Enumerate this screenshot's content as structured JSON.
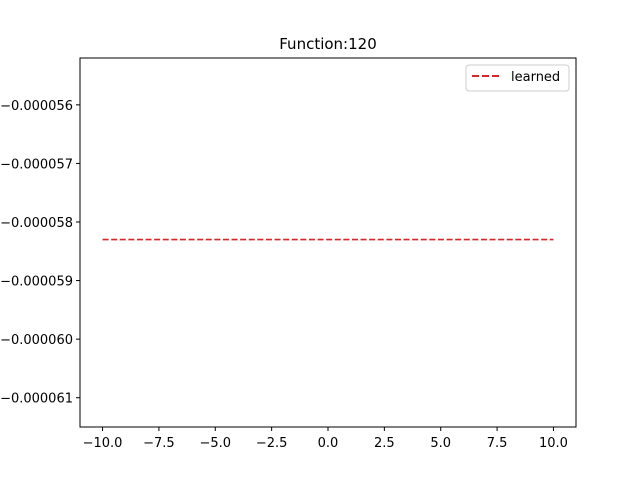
{
  "chart_data": {
    "type": "line",
    "title": "Function:120",
    "xlabel": "",
    "ylabel": "",
    "xlim": [
      -11.0,
      11.0
    ],
    "ylim": [
      -6.15e-05,
      -5.52e-05
    ],
    "grid": false,
    "legend_placement": "top-right",
    "x_ticks": [
      -10.0,
      -7.5,
      -5.0,
      -2.5,
      0.0,
      2.5,
      5.0,
      7.5,
      10.0
    ],
    "x_tick_labels": [
      "−10.0",
      "−7.5",
      "−5.0",
      "−2.5",
      "0.0",
      "2.5",
      "5.0",
      "7.5",
      "10.0"
    ],
    "y_ticks": [
      -5.6e-05,
      -5.7e-05,
      -5.8e-05,
      -5.9e-05,
      -6e-05,
      -6.1e-05
    ],
    "y_tick_labels": [
      "−0.000056",
      "−0.000057",
      "−0.000058",
      "−0.000059",
      "−0.000060",
      "−0.000061"
    ],
    "series": [
      {
        "name": "learned",
        "color": "#d62728",
        "style": "dashed",
        "x": [
          -10.0,
          10.0
        ],
        "y": [
          -5.83e-05,
          -5.83e-05
        ]
      }
    ]
  }
}
